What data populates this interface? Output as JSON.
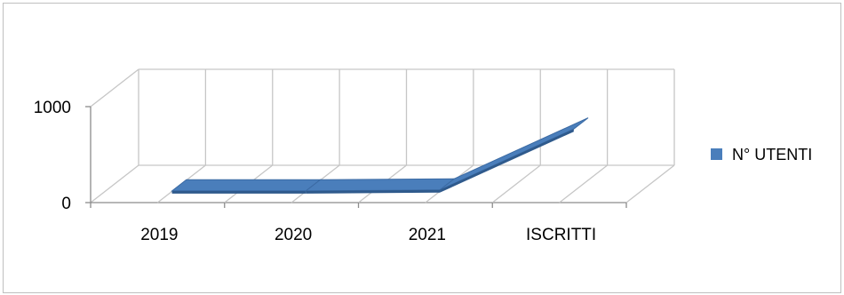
{
  "chart_data": {
    "type": "line",
    "style": "3d",
    "categories": [
      "2019",
      "2020",
      "2021",
      "ISCRITTI"
    ],
    "series": [
      {
        "name": "N° UTENTI",
        "values": [
          5,
          5,
          15,
          650
        ],
        "color": "#4a7ebb"
      }
    ],
    "title": "",
    "xlabel": "",
    "ylabel": "",
    "ylim": [
      0,
      1000
    ],
    "yticks": [
      "0",
      "1000"
    ],
    "grid": true,
    "legend_position": "right"
  }
}
